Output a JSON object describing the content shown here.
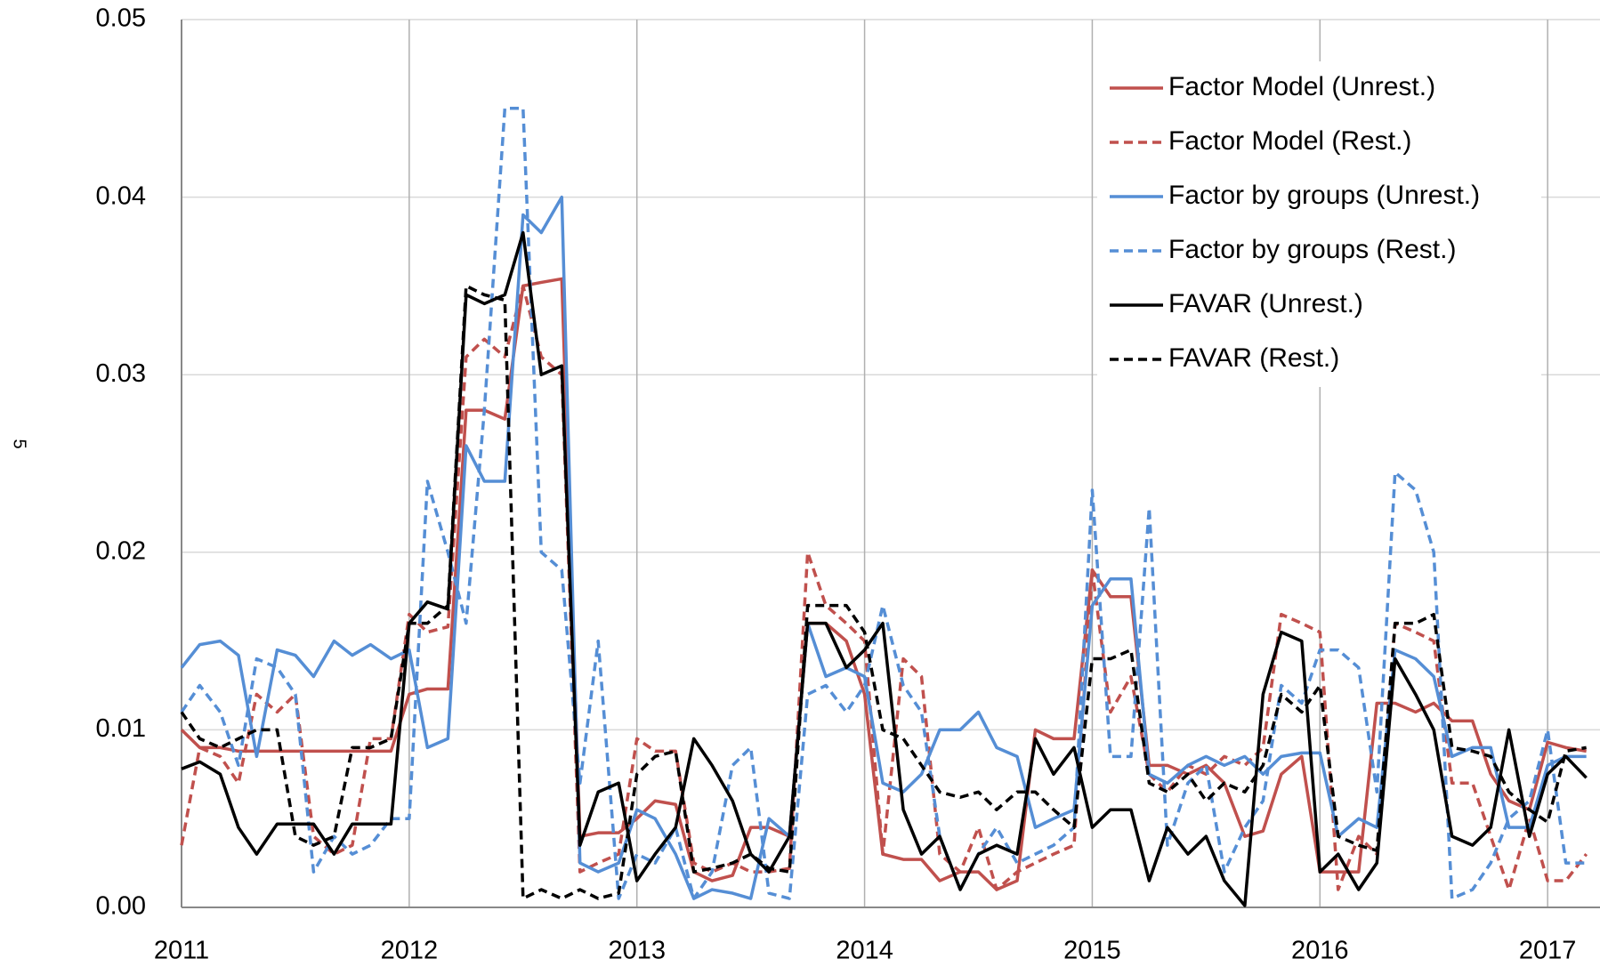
{
  "page_number": "5",
  "chart_data": {
    "type": "line",
    "x": [
      2011,
      2011.08,
      2011.17,
      2011.25,
      2011.33,
      2011.42,
      2011.5,
      2011.58,
      2011.67,
      2011.75,
      2011.83,
      2011.92,
      2012,
      2012.08,
      2012.17,
      2012.25,
      2012.33,
      2012.42,
      2012.5,
      2012.58,
      2012.67,
      2012.75,
      2012.83,
      2012.92,
      2013,
      2013.08,
      2013.17,
      2013.25,
      2013.33,
      2013.42,
      2013.5,
      2013.58,
      2013.67,
      2013.75,
      2013.83,
      2013.92,
      2014,
      2014.08,
      2014.17,
      2014.25,
      2014.33,
      2014.42,
      2014.5,
      2014.58,
      2014.67,
      2014.75,
      2014.83,
      2014.92,
      2015,
      2015.08,
      2015.17,
      2015.25,
      2015.33,
      2015.42,
      2015.5,
      2015.58,
      2015.67,
      2015.75,
      2015.83,
      2015.92,
      2016,
      2016.08,
      2016.17,
      2016.25,
      2016.33,
      2016.42,
      2016.5,
      2016.58,
      2016.67,
      2016.75,
      2016.83,
      2016.92,
      2017,
      2017.08,
      2017.17
    ],
    "series": [
      {
        "name": "Factor Model (Unrest.)",
        "color": "#c0504d",
        "dashed": false,
        "values": [
          0.01,
          0.009,
          0.009,
          0.0088,
          0.0088,
          0.0088,
          0.0088,
          0.0088,
          0.0088,
          0.0088,
          0.0088,
          0.0088,
          0.012,
          0.0123,
          0.0123,
          0.028,
          0.028,
          0.0275,
          0.035,
          0.0352,
          0.0354,
          0.004,
          0.0042,
          0.0042,
          0.005,
          0.006,
          0.0058,
          0.002,
          0.0015,
          0.0018,
          0.0045,
          0.0045,
          0.004,
          0.016,
          0.016,
          0.015,
          0.012,
          0.003,
          0.0027,
          0.0027,
          0.0015,
          0.002,
          0.002,
          0.001,
          0.0015,
          0.01,
          0.0095,
          0.0095,
          0.019,
          0.0175,
          0.0175,
          0.008,
          0.008,
          0.0075,
          0.008,
          0.007,
          0.004,
          0.0043,
          0.0075,
          0.0085,
          0.002,
          0.002,
          0.002,
          0.0115,
          0.0115,
          0.011,
          0.0115,
          0.0105,
          0.0105,
          0.0075,
          0.006,
          0.0055,
          0.0093,
          0.009,
          0.0088
        ]
      },
      {
        "name": "Factor Model (Rest.)",
        "color": "#c0504d",
        "dashed": true,
        "values": [
          0.0035,
          0.009,
          0.0085,
          0.007,
          0.012,
          0.011,
          0.012,
          0.004,
          0.003,
          0.0035,
          0.0095,
          0.0095,
          0.0165,
          0.0155,
          0.0158,
          0.031,
          0.032,
          0.031,
          0.035,
          0.031,
          0.03,
          0.002,
          0.0025,
          0.003,
          0.0095,
          0.0088,
          0.0088,
          0.0025,
          0.002,
          0.0025,
          0.002,
          0.002,
          0.0022,
          0.02,
          0.017,
          0.016,
          0.015,
          0.003,
          0.014,
          0.013,
          0.003,
          0.002,
          0.0045,
          0.001,
          0.002,
          0.0025,
          0.003,
          0.0035,
          0.019,
          0.011,
          0.013,
          0.0075,
          0.0065,
          0.008,
          0.0075,
          0.0085,
          0.008,
          0.009,
          0.0165,
          0.016,
          0.0155,
          0.001,
          0.004,
          0.003,
          0.016,
          0.0155,
          0.015,
          0.007,
          0.007,
          0.004,
          0.001,
          0.005,
          0.0015,
          0.0015,
          0.003
        ]
      },
      {
        "name": "Factor by groups (Unrest.)",
        "color": "#558ed5",
        "dashed": false,
        "values": [
          0.0135,
          0.0148,
          0.015,
          0.0142,
          0.0085,
          0.0145,
          0.0142,
          0.013,
          0.015,
          0.0142,
          0.0148,
          0.014,
          0.0145,
          0.009,
          0.0095,
          0.026,
          0.024,
          0.024,
          0.039,
          0.038,
          0.04,
          0.0025,
          0.002,
          0.0025,
          0.0055,
          0.005,
          0.003,
          0.0005,
          0.001,
          0.0008,
          0.0005,
          0.005,
          0.004,
          0.016,
          0.013,
          0.0135,
          0.013,
          0.007,
          0.0065,
          0.0075,
          0.01,
          0.01,
          0.011,
          0.009,
          0.0085,
          0.0045,
          0.005,
          0.0055,
          0.017,
          0.0185,
          0.0185,
          0.0075,
          0.007,
          0.008,
          0.0085,
          0.008,
          0.0085,
          0.0075,
          0.0085,
          0.0087,
          0.0087,
          0.004,
          0.005,
          0.0045,
          0.0145,
          0.014,
          0.013,
          0.0085,
          0.009,
          0.009,
          0.0045,
          0.0045,
          0.008,
          0.0085,
          0.0085
        ]
      },
      {
        "name": "Factor by groups (Rest.)",
        "color": "#558ed5",
        "dashed": true,
        "values": [
          0.011,
          0.0125,
          0.011,
          0.008,
          0.014,
          0.0135,
          0.012,
          0.002,
          0.004,
          0.003,
          0.0035,
          0.005,
          0.005,
          0.024,
          0.02,
          0.016,
          0.028,
          0.045,
          0.045,
          0.02,
          0.019,
          0.007,
          0.015,
          0.0005,
          0.003,
          0.0025,
          0.0045,
          0.0005,
          0.002,
          0.008,
          0.009,
          0.0008,
          0.0005,
          0.012,
          0.0125,
          0.011,
          0.0125,
          0.017,
          0.0125,
          0.011,
          0.004,
          0.001,
          0.003,
          0.0045,
          0.0025,
          0.003,
          0.0035,
          0.0045,
          0.0235,
          0.0085,
          0.0085,
          0.0225,
          0.0035,
          0.007,
          0.008,
          0.002,
          0.0045,
          0.006,
          0.0125,
          0.0115,
          0.0145,
          0.0145,
          0.0135,
          0.0065,
          0.0245,
          0.0235,
          0.02,
          0.0005,
          0.001,
          0.0025,
          0.005,
          0.006,
          0.01,
          0.0025,
          0.0025
        ]
      },
      {
        "name": "FAVAR (Unrest.)",
        "color": "#000000",
        "dashed": false,
        "values": [
          0.0078,
          0.0082,
          0.0075,
          0.0045,
          0.003,
          0.0047,
          0.0047,
          0.0047,
          0.003,
          0.0047,
          0.0047,
          0.0047,
          0.016,
          0.0172,
          0.0168,
          0.0345,
          0.034,
          0.0345,
          0.038,
          0.03,
          0.0305,
          0.0035,
          0.0065,
          0.007,
          0.0015,
          0.003,
          0.0045,
          0.0095,
          0.008,
          0.006,
          0.003,
          0.002,
          0.004,
          0.016,
          0.016,
          0.0135,
          0.0145,
          0.016,
          0.0055,
          0.003,
          0.004,
          0.001,
          0.003,
          0.0035,
          0.003,
          0.0095,
          0.0075,
          0.009,
          0.0045,
          0.0055,
          0.0055,
          0.0015,
          0.0045,
          0.003,
          0.004,
          0.0015,
          0.0001,
          0.012,
          0.0155,
          0.015,
          0.002,
          0.003,
          0.001,
          0.0025,
          0.014,
          0.012,
          0.01,
          0.004,
          0.0035,
          0.0045,
          0.01,
          0.004,
          0.0075,
          0.0085,
          0.0073
        ]
      },
      {
        "name": "FAVAR (Rest.)",
        "color": "#000000",
        "dashed": true,
        "values": [
          0.011,
          0.0095,
          0.009,
          0.0095,
          0.01,
          0.01,
          0.004,
          0.0035,
          0.004,
          0.009,
          0.009,
          0.0095,
          0.016,
          0.016,
          0.017,
          0.035,
          0.0345,
          0.0342,
          0.0005,
          0.001,
          0.0005,
          0.001,
          0.0005,
          0.0008,
          0.0075,
          0.0085,
          0.0088,
          0.002,
          0.0022,
          0.0025,
          0.003,
          0.0022,
          0.002,
          0.017,
          0.017,
          0.017,
          0.0155,
          0.01,
          0.0095,
          0.008,
          0.0065,
          0.0062,
          0.0065,
          0.0055,
          0.0065,
          0.0065,
          0.0055,
          0.0045,
          0.014,
          0.014,
          0.0145,
          0.007,
          0.0065,
          0.0075,
          0.006,
          0.007,
          0.0065,
          0.008,
          0.012,
          0.011,
          0.0125,
          0.004,
          0.0035,
          0.0032,
          0.016,
          0.016,
          0.0165,
          0.009,
          0.0088,
          0.0085,
          0.0065,
          0.0055,
          0.0048,
          0.0088,
          0.009
        ]
      }
    ],
    "xlim": [
      2011,
      2017.23
    ],
    "xticks": [
      2011,
      2012,
      2013,
      2014,
      2015,
      2016,
      2017
    ],
    "ylim": [
      0,
      0.05
    ],
    "yticks": [
      {
        "value": 0,
        "label": "0.00"
      },
      0.01,
      0.02,
      0.03,
      0.04,
      0.05
    ],
    "grid": true,
    "legend": "upper right"
  }
}
